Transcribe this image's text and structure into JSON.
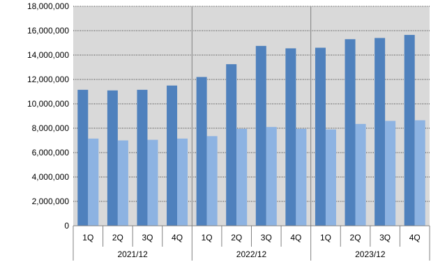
{
  "chart_data": {
    "type": "bar",
    "title": "",
    "xlabel": "",
    "ylabel": "",
    "ylim": [
      0,
      18000000
    ],
    "yticks": [
      0,
      2000000,
      4000000,
      6000000,
      8000000,
      10000000,
      12000000,
      14000000,
      16000000,
      18000000
    ],
    "ytick_labels": [
      "0",
      "2,000,000",
      "4,000,000",
      "6,000,000",
      "8,000,000",
      "10,000,000",
      "12,000,000",
      "14,000,000",
      "16,000,000",
      "18,000,000"
    ],
    "grid": "horizontal dotted",
    "legend": "none",
    "groups": [
      {
        "label": "2021/12",
        "categories": [
          "1Q",
          "2Q",
          "3Q",
          "4Q"
        ]
      },
      {
        "label": "2022/12",
        "categories": [
          "1Q",
          "2Q",
          "3Q",
          "4Q"
        ]
      },
      {
        "label": "2023/12",
        "categories": [
          "1Q",
          "2Q",
          "3Q",
          "4Q"
        ]
      }
    ],
    "series": [
      {
        "values": [
          11150000,
          11100000,
          11150000,
          11500000,
          12200000,
          13250000,
          14750000,
          14550000,
          14600000,
          15300000,
          15400000,
          15650000
        ],
        "color": "#4f81bd"
      },
      {
        "values": [
          7150000,
          7000000,
          7050000,
          7150000,
          7350000,
          7950000,
          8100000,
          7950000,
          7900000,
          8350000,
          8600000,
          8650000
        ],
        "color": "#8db3e2"
      }
    ],
    "plot_background": "#d9d9d9",
    "grid_color": "#000000",
    "separator_color": "#808080"
  }
}
